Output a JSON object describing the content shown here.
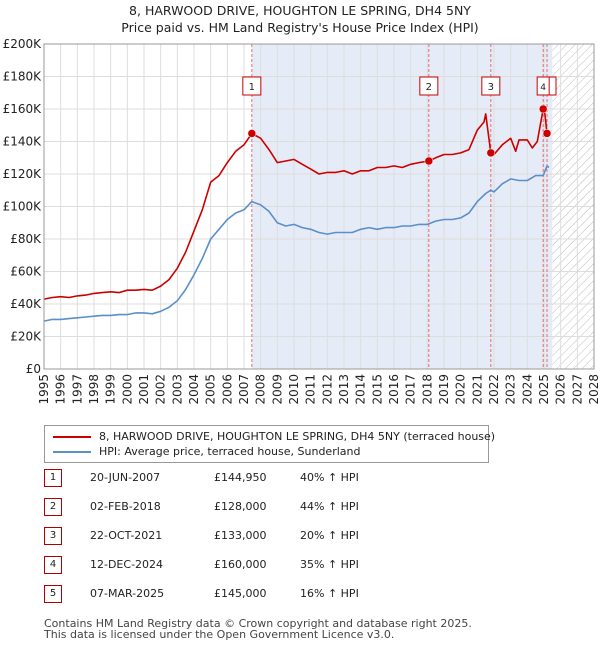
{
  "title": {
    "line1": "8, HARWOOD DRIVE, HOUGHTON LE SPRING, DH4 5NY",
    "line2": "Price paid vs. HM Land Registry's House Price Index (HPI)"
  },
  "colors": {
    "price_line": "#cc0000",
    "hpi_line": "#5b8fc9",
    "band_fill": "#e6ecf7",
    "marker_line": "#e07070",
    "grid": "#dddddd"
  },
  "chart_data": {
    "type": "line",
    "x_label": "",
    "y_label": "",
    "xlim": [
      1995,
      2028
    ],
    "ylim": [
      0,
      200000
    ],
    "x_ticks": [
      "1995",
      "1996",
      "1997",
      "1998",
      "1999",
      "2000",
      "2001",
      "2002",
      "2003",
      "2004",
      "2005",
      "2006",
      "2007",
      "2008",
      "2009",
      "2010",
      "2011",
      "2012",
      "2013",
      "2014",
      "2015",
      "2016",
      "2017",
      "2018",
      "2019",
      "2020",
      "2021",
      "2022",
      "2023",
      "2024",
      "2025",
      "2026",
      "2027",
      "2028"
    ],
    "y_ticks": [
      {
        "value": 0,
        "label": "£0"
      },
      {
        "value": 20000,
        "label": "£20K"
      },
      {
        "value": 40000,
        "label": "£40K"
      },
      {
        "value": 60000,
        "label": "£60K"
      },
      {
        "value": 80000,
        "label": "£80K"
      },
      {
        "value": 100000,
        "label": "£100K"
      },
      {
        "value": 120000,
        "label": "£120K"
      },
      {
        "value": 140000,
        "label": "£140K"
      },
      {
        "value": 160000,
        "label": "£160K"
      },
      {
        "value": 180000,
        "label": "£180K"
      },
      {
        "value": 200000,
        "label": "£200K"
      }
    ],
    "shaded_band_from": 2007.47,
    "hatched_from": 2025.5,
    "series": [
      {
        "name": "8, HARWOOD DRIVE, HOUGHTON LE SPRING, DH4 5NY (terraced house)",
        "color": "#cc0000",
        "points": [
          [
            1995.0,
            43000
          ],
          [
            1995.5,
            44000
          ],
          [
            1996.0,
            44500
          ],
          [
            1996.5,
            44000
          ],
          [
            1997.0,
            45000
          ],
          [
            1997.5,
            45500
          ],
          [
            1998.0,
            46500
          ],
          [
            1998.5,
            47000
          ],
          [
            1999.0,
            47500
          ],
          [
            1999.5,
            47000
          ],
          [
            2000.0,
            48500
          ],
          [
            2000.5,
            48500
          ],
          [
            2001.0,
            49000
          ],
          [
            2001.5,
            48500
          ],
          [
            2002.0,
            51000
          ],
          [
            2002.5,
            55000
          ],
          [
            2003.0,
            62000
          ],
          [
            2003.5,
            72000
          ],
          [
            2004.0,
            85000
          ],
          [
            2004.5,
            98000
          ],
          [
            2005.0,
            115000
          ],
          [
            2005.5,
            119000
          ],
          [
            2006.0,
            127000
          ],
          [
            2006.5,
            134000
          ],
          [
            2007.0,
            138000
          ],
          [
            2007.47,
            144950
          ],
          [
            2008.0,
            142000
          ],
          [
            2008.5,
            135000
          ],
          [
            2009.0,
            127000
          ],
          [
            2009.5,
            128000
          ],
          [
            2010.0,
            129000
          ],
          [
            2010.5,
            126000
          ],
          [
            2011.0,
            123000
          ],
          [
            2011.5,
            120000
          ],
          [
            2012.0,
            121000
          ],
          [
            2012.5,
            121000
          ],
          [
            2013.0,
            122000
          ],
          [
            2013.5,
            120000
          ],
          [
            2014.0,
            122000
          ],
          [
            2014.5,
            122000
          ],
          [
            2015.0,
            124000
          ],
          [
            2015.5,
            124000
          ],
          [
            2016.0,
            125000
          ],
          [
            2016.5,
            124000
          ],
          [
            2017.0,
            126000
          ],
          [
            2017.5,
            127000
          ],
          [
            2018.09,
            128000
          ],
          [
            2018.5,
            130000
          ],
          [
            2019.0,
            132000
          ],
          [
            2019.5,
            132000
          ],
          [
            2020.0,
            133000
          ],
          [
            2020.5,
            135000
          ],
          [
            2021.0,
            147000
          ],
          [
            2021.4,
            152000
          ],
          [
            2021.5,
            157000
          ],
          [
            2021.81,
            133000
          ],
          [
            2022.0,
            132000
          ],
          [
            2022.5,
            138000
          ],
          [
            2023.0,
            142000
          ],
          [
            2023.3,
            134000
          ],
          [
            2023.5,
            141000
          ],
          [
            2024.0,
            141000
          ],
          [
            2024.3,
            136000
          ],
          [
            2024.6,
            140000
          ],
          [
            2024.95,
            160000
          ],
          [
            2025.0,
            162000
          ],
          [
            2025.18,
            145000
          ],
          [
            2025.3,
            143000
          ]
        ]
      },
      {
        "name": "HPI: Average price, terraced house, Sunderland",
        "color": "#5b8fc9",
        "points": [
          [
            1995.0,
            29500
          ],
          [
            1995.5,
            30500
          ],
          [
            1996.0,
            30500
          ],
          [
            1996.5,
            31000
          ],
          [
            1997.0,
            31500
          ],
          [
            1997.5,
            32000
          ],
          [
            1998.0,
            32500
          ],
          [
            1998.5,
            33000
          ],
          [
            1999.0,
            33000
          ],
          [
            1999.5,
            33500
          ],
          [
            2000.0,
            33500
          ],
          [
            2000.5,
            34500
          ],
          [
            2001.0,
            34500
          ],
          [
            2001.5,
            34000
          ],
          [
            2002.0,
            35500
          ],
          [
            2002.5,
            38000
          ],
          [
            2003.0,
            42000
          ],
          [
            2003.5,
            49000
          ],
          [
            2004.0,
            58000
          ],
          [
            2004.5,
            68000
          ],
          [
            2005.0,
            80000
          ],
          [
            2005.5,
            86000
          ],
          [
            2006.0,
            92000
          ],
          [
            2006.5,
            96000
          ],
          [
            2007.0,
            98000
          ],
          [
            2007.47,
            103000
          ],
          [
            2008.0,
            101000
          ],
          [
            2008.5,
            97000
          ],
          [
            2009.0,
            90000
          ],
          [
            2009.5,
            88000
          ],
          [
            2010.0,
            89000
          ],
          [
            2010.5,
            87000
          ],
          [
            2011.0,
            86000
          ],
          [
            2011.5,
            84000
          ],
          [
            2012.0,
            83000
          ],
          [
            2012.5,
            84000
          ],
          [
            2013.0,
            84000
          ],
          [
            2013.5,
            84000
          ],
          [
            2014.0,
            86000
          ],
          [
            2014.5,
            87000
          ],
          [
            2015.0,
            86000
          ],
          [
            2015.5,
            87000
          ],
          [
            2016.0,
            87000
          ],
          [
            2016.5,
            88000
          ],
          [
            2017.0,
            88000
          ],
          [
            2017.5,
            89000
          ],
          [
            2018.0,
            89000
          ],
          [
            2018.5,
            91000
          ],
          [
            2019.0,
            92000
          ],
          [
            2019.5,
            92000
          ],
          [
            2020.0,
            93000
          ],
          [
            2020.5,
            96000
          ],
          [
            2021.0,
            103000
          ],
          [
            2021.5,
            108000
          ],
          [
            2021.81,
            110000
          ],
          [
            2022.0,
            109000
          ],
          [
            2022.5,
            114000
          ],
          [
            2023.0,
            117000
          ],
          [
            2023.5,
            116000
          ],
          [
            2024.0,
            116000
          ],
          [
            2024.5,
            119000
          ],
          [
            2024.95,
            119000
          ],
          [
            2025.18,
            125000
          ],
          [
            2025.3,
            124000
          ]
        ]
      }
    ],
    "sale_markers": [
      {
        "label": "1",
        "x": 2007.47,
        "y": 144950
      },
      {
        "label": "2",
        "x": 2018.09,
        "y": 128000
      },
      {
        "label": "3",
        "x": 2021.81,
        "y": 133000
      },
      {
        "label": "4",
        "x": 2024.95,
        "y": 160000
      },
      {
        "label": "5",
        "x": 2025.18,
        "y": 145000
      }
    ]
  },
  "legend": {
    "price_label": "8, HARWOOD DRIVE, HOUGHTON LE SPRING, DH4 5NY (terraced house)",
    "hpi_label": "HPI: Average price, terraced house, Sunderland"
  },
  "sales": [
    {
      "num": "1",
      "date": "20-JUN-2007",
      "price": "£144,950",
      "hpi": "40% ↑ HPI"
    },
    {
      "num": "2",
      "date": "02-FEB-2018",
      "price": "£128,000",
      "hpi": "44% ↑ HPI"
    },
    {
      "num": "3",
      "date": "22-OCT-2021",
      "price": "£133,000",
      "hpi": "20% ↑ HPI"
    },
    {
      "num": "4",
      "date": "12-DEC-2024",
      "price": "£160,000",
      "hpi": "35% ↑ HPI"
    },
    {
      "num": "5",
      "date": "07-MAR-2025",
      "price": "£145,000",
      "hpi": "16% ↑ HPI"
    }
  ],
  "footer": {
    "line1": "Contains HM Land Registry data © Crown copyright and database right 2025.",
    "line2": "This data is licensed under the Open Government Licence v3.0."
  }
}
